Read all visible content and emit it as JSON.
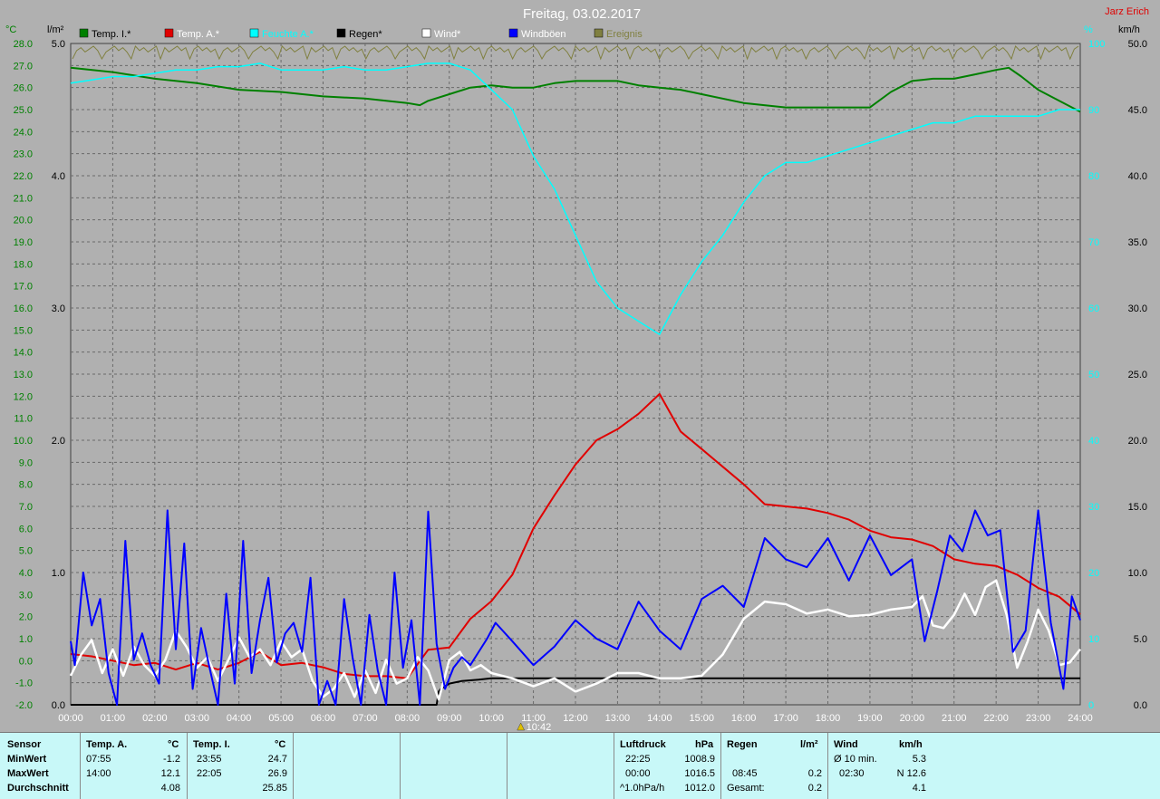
{
  "chart_data": {
    "type": "line",
    "title": "Freitag, 03.02.2017",
    "author": "Jarz Erich",
    "units": {
      "temp": "°C",
      "rain": "l/m²",
      "hum": "%",
      "wind": "km/h"
    },
    "legend": [
      {
        "name": "Temp. I.*",
        "color": "#008000"
      },
      {
        "name": "Temp. A.*",
        "color": "#e00000"
      },
      {
        "name": "Feuchte A.*",
        "color": "#00ffff"
      },
      {
        "name": "Regen*",
        "color": "#000000"
      },
      {
        "name": "Wind*",
        "color": "#ffffff"
      },
      {
        "name": "Windböen",
        "color": "#0000ff"
      },
      {
        "name": "Ereignis",
        "color": "#808040"
      }
    ],
    "axes": {
      "temp_range": [
        -2.0,
        28.0
      ],
      "temp_ticks": [
        "28.0",
        "27.0",
        "26.0",
        "25.0",
        "24.0",
        "23.0",
        "22.0",
        "21.0",
        "20.0",
        "19.0",
        "18.0",
        "17.0",
        "16.0",
        "15.0",
        "14.0",
        "13.0",
        "12.0",
        "11.0",
        "10.0",
        "9.0",
        "8.0",
        "7.0",
        "6.0",
        "5.0",
        "4.0",
        "3.0",
        "2.0",
        "1.0",
        "0.0",
        "-1.0",
        "-2.0"
      ],
      "rain_range": [
        0.0,
        5.0
      ],
      "rain_ticks": [
        "5.0",
        "4.0",
        "3.0",
        "2.0",
        "1.0",
        "0.0"
      ],
      "hum_range": [
        0,
        100
      ],
      "hum_ticks": [
        "100",
        "90",
        "80",
        "70",
        "60",
        "50",
        "40",
        "30",
        "20",
        "10",
        "0"
      ],
      "wind_range": [
        0.0,
        50.0
      ],
      "wind_ticks": [
        "50.0",
        "45.0",
        "40.0",
        "35.0",
        "30.0",
        "25.0",
        "20.0",
        "15.0",
        "10.0",
        "5.0",
        "0.0"
      ],
      "x_ticks": [
        "00:00",
        "01:00",
        "02:00",
        "03:00",
        "04:00",
        "05:00",
        "06:00",
        "07:00",
        "08:00",
        "09:00",
        "10:00",
        "11:00",
        "12:00",
        "13:00",
        "14:00",
        "15:00",
        "16:00",
        "17:00",
        "18:00",
        "19:00",
        "20:00",
        "21:00",
        "22:00",
        "23:00",
        "24:00"
      ],
      "grid": true
    },
    "event_marker": {
      "x": 10.7,
      "label": "10:42"
    },
    "series": [
      {
        "name": "Temp. I.*",
        "axis": "temp",
        "color": "#008000",
        "x": [
          0,
          1,
          2,
          3,
          4,
          5,
          6,
          7,
          7.5,
          8,
          8.3,
          8.5,
          9,
          9.5,
          10,
          10.5,
          11,
          11.5,
          12,
          12.5,
          13,
          13.5,
          14,
          14.5,
          15,
          16,
          17,
          18,
          19,
          19.5,
          20,
          20.5,
          21,
          21.5,
          22,
          22.3,
          22.6,
          23,
          23.5,
          24
        ],
        "values": [
          26.9,
          26.7,
          26.4,
          26.2,
          25.9,
          25.8,
          25.6,
          25.5,
          25.4,
          25.3,
          25.2,
          25.4,
          25.7,
          26.0,
          26.1,
          26.0,
          26.0,
          26.2,
          26.3,
          26.3,
          26.3,
          26.1,
          26.0,
          25.9,
          25.7,
          25.3,
          25.1,
          25.1,
          25.1,
          25.8,
          26.3,
          26.4,
          26.4,
          26.6,
          26.8,
          26.9,
          26.5,
          25.9,
          25.4,
          24.9
        ]
      },
      {
        "name": "Temp. A.*",
        "axis": "temp",
        "color": "#e00000",
        "x": [
          0,
          0.5,
          1,
          1.5,
          2,
          2.5,
          3,
          3.5,
          4,
          4.5,
          5,
          5.5,
          6,
          6.5,
          7,
          7.5,
          8,
          8.5,
          9,
          9.5,
          10,
          10.5,
          11,
          11.5,
          12,
          12.5,
          13,
          13.5,
          14,
          14.5,
          15,
          15.5,
          16,
          16.5,
          17,
          17.5,
          18,
          18.5,
          19,
          19.5,
          20,
          20.5,
          21,
          21.5,
          22,
          22.5,
          23,
          23.5,
          24
        ],
        "values": [
          0.3,
          0.2,
          0.0,
          -0.2,
          -0.1,
          -0.4,
          -0.1,
          -0.4,
          -0.1,
          0.4,
          -0.2,
          -0.1,
          -0.3,
          -0.6,
          -0.7,
          -0.7,
          -0.8,
          0.5,
          0.6,
          1.9,
          2.7,
          3.9,
          6.0,
          7.5,
          8.9,
          10.0,
          10.5,
          11.2,
          12.1,
          10.4,
          9.6,
          8.8,
          8.0,
          7.1,
          7.0,
          6.9,
          6.7,
          6.4,
          5.9,
          5.6,
          5.5,
          5.2,
          4.6,
          4.4,
          4.3,
          3.9,
          3.3,
          2.9,
          2.1
        ]
      },
      {
        "name": "Feuchte A.*",
        "axis": "hum",
        "color": "#00ffff",
        "x": [
          0,
          0.5,
          1,
          1.5,
          2,
          2.5,
          3,
          3.5,
          4,
          4.5,
          5,
          5.5,
          6,
          6.5,
          7,
          7.5,
          8,
          8.5,
          9,
          9.5,
          10,
          10.5,
          11,
          11.5,
          12,
          12.5,
          13,
          13.5,
          14,
          14.5,
          15,
          15.5,
          16,
          16.5,
          17,
          17.5,
          18,
          18.5,
          19,
          19.5,
          20,
          20.5,
          21,
          21.5,
          22,
          22.5,
          23,
          23.5,
          24
        ],
        "values": [
          94,
          94.5,
          95,
          95,
          95.5,
          96,
          96,
          96.5,
          96.5,
          97,
          96,
          96,
          96,
          96.5,
          96,
          96,
          96.5,
          97,
          97,
          96,
          93,
          90,
          83,
          78,
          71,
          64,
          60,
          58,
          56,
          62,
          67,
          71,
          76,
          80,
          82,
          82,
          83,
          84,
          85,
          86,
          87,
          88,
          88,
          89,
          89,
          89,
          89,
          90,
          90
        ]
      },
      {
        "name": "Regen*",
        "axis": "rain",
        "color": "#000000",
        "x": [
          0,
          8.7,
          8.75,
          8.8,
          9.0,
          9.3,
          9.7,
          10.0,
          10.5,
          24
        ],
        "values": [
          0,
          0,
          0.1,
          0.12,
          0.16,
          0.18,
          0.19,
          0.2,
          0.2,
          0.2
        ]
      },
      {
        "name": "Wind*",
        "axis": "wind",
        "color": "#ffffff",
        "x": [
          0,
          0.25,
          0.5,
          0.75,
          1,
          1.25,
          1.5,
          1.75,
          2,
          2.25,
          2.5,
          2.75,
          3,
          3.25,
          3.5,
          3.75,
          4,
          4.25,
          4.5,
          4.75,
          5,
          5.25,
          5.5,
          5.75,
          6,
          6.25,
          6.5,
          6.75,
          7,
          7.25,
          7.5,
          7.75,
          8,
          8.25,
          8.5,
          8.75,
          9,
          9.25,
          9.5,
          9.75,
          10,
          10.5,
          11,
          11.5,
          12,
          12.5,
          13,
          13.5,
          14,
          14.5,
          15,
          15.5,
          16,
          16.5,
          17,
          17.5,
          18,
          18.5,
          19,
          19.5,
          20,
          20.25,
          20.5,
          20.75,
          21,
          21.25,
          21.5,
          21.75,
          22,
          22.25,
          22.5,
          22.75,
          23,
          23.25,
          23.5,
          23.75,
          24
        ],
        "values": [
          2.2,
          3.8,
          4.9,
          2.4,
          4.2,
          2.2,
          4.4,
          3.0,
          2.2,
          3.4,
          5.6,
          4.4,
          2.8,
          3.6,
          1.8,
          3.4,
          5.1,
          3.6,
          4.2,
          3.0,
          4.8,
          3.6,
          4.2,
          1.8,
          0.6,
          1.2,
          2.4,
          0.6,
          2.6,
          0.9,
          3.4,
          1.6,
          2.0,
          3.6,
          2.6,
          0.4,
          3.4,
          4.0,
          2.6,
          3.0,
          2.4,
          2.0,
          1.4,
          2.0,
          1.0,
          1.6,
          2.4,
          2.4,
          2.0,
          2.0,
          2.2,
          3.8,
          6.5,
          7.8,
          7.6,
          6.9,
          7.2,
          6.7,
          6.8,
          7.2,
          7.4,
          8.2,
          6.0,
          5.8,
          6.8,
          8.4,
          6.8,
          8.9,
          9.4,
          6.8,
          2.8,
          4.8,
          7.2,
          5.6,
          3.0,
          3.2,
          4.2
        ]
      },
      {
        "name": "Windböen",
        "axis": "wind",
        "color": "#0000ff",
        "x": [
          0,
          0.1,
          0.3,
          0.5,
          0.7,
          0.9,
          1.1,
          1.3,
          1.5,
          1.7,
          1.9,
          2.1,
          2.3,
          2.5,
          2.7,
          2.9,
          3.1,
          3.3,
          3.5,
          3.7,
          3.9,
          4.1,
          4.3,
          4.5,
          4.7,
          4.9,
          5.1,
          5.3,
          5.5,
          5.7,
          5.9,
          6.1,
          6.3,
          6.5,
          6.7,
          6.9,
          7.1,
          7.3,
          7.5,
          7.7,
          7.9,
          8.1,
          8.3,
          8.5,
          8.7,
          8.9,
          9.1,
          9.3,
          9.5,
          9.7,
          9.9,
          10.1,
          10.5,
          11,
          11.5,
          12,
          12.5,
          13,
          13.5,
          14,
          14.5,
          15,
          15.5,
          16,
          16.5,
          17,
          17.5,
          18,
          18.5,
          19,
          19.5,
          20,
          20.3,
          20.6,
          20.9,
          21.2,
          21.5,
          21.8,
          22.1,
          22.4,
          22.7,
          23,
          23.3,
          23.6,
          23.8,
          24
        ],
        "values": [
          4.8,
          3.0,
          10.0,
          6.0,
          8.0,
          2.4,
          0.0,
          12.4,
          3.4,
          5.4,
          3.0,
          1.6,
          14.7,
          4.2,
          12.2,
          1.2,
          5.8,
          2.8,
          0.0,
          8.4,
          1.6,
          12.4,
          2.4,
          6.4,
          9.6,
          3.2,
          5.4,
          6.2,
          4.0,
          9.6,
          0.0,
          1.8,
          0.0,
          8.0,
          3.6,
          0.0,
          6.8,
          2.6,
          0.0,
          10.0,
          2.8,
          6.4,
          0.0,
          14.6,
          4.6,
          1.2,
          2.8,
          3.6,
          3.0,
          4.0,
          5.0,
          6.2,
          4.8,
          3.0,
          4.4,
          6.4,
          5.0,
          4.2,
          7.8,
          5.6,
          4.2,
          8.0,
          9.0,
          7.4,
          12.6,
          11.0,
          10.4,
          12.6,
          9.4,
          12.8,
          9.8,
          11.0,
          4.8,
          8.6,
          12.8,
          11.6,
          14.7,
          12.8,
          13.2,
          4.0,
          5.6,
          14.7,
          6.2,
          1.2,
          8.2,
          6.4
        ]
      }
    ]
  },
  "table": {
    "sensor": {
      "header": "Sensor",
      "rows": [
        "MinWert",
        "MaxWert",
        "Durchschnitt"
      ]
    },
    "temp_a": {
      "header": "Temp. A.",
      "unit": "°C",
      "min_time": "07:55",
      "min_val": "-1.2",
      "max_time": "14:00",
      "max_val": "12.1",
      "avg": "4.08"
    },
    "temp_i": {
      "header": "Temp. I.",
      "unit": "°C",
      "min_time": "23:55",
      "min_val": "24.7",
      "max_time": "22:05",
      "max_val": "26.9",
      "avg": "25.85"
    },
    "luftdruck": {
      "header": "Luftdruck",
      "unit": "hPa",
      "min_time": "22:25",
      "min_val": "1008.9",
      "max_time": "00:00",
      "max_val": "1016.5",
      "row3_label": "^1.0hPa/h",
      "row3_val": "1012.0"
    },
    "regen": {
      "header": "Regen",
      "unit": "l/m²",
      "row2_time": "08:45",
      "row2_val": "0.2",
      "row3_label": "Gesamt:",
      "row3_val": "0.2"
    },
    "wind": {
      "header": "Wind",
      "unit": "km/h",
      "row1_label": "Ø 10 min.",
      "row1_val": "5.3",
      "row2_time": "02:30",
      "row2_val": "N 12.6",
      "row3_val": "4.1"
    }
  }
}
